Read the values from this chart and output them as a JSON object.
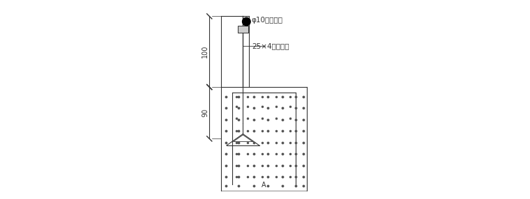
{
  "bg_color": "#ffffff",
  "line_color": "#333333",
  "dot_color": "#555555",
  "text_color": "#333333",
  "label1": "φ10镀锌圆锂",
  "label2": "25×4镀锌扁锂",
  "label_A": "A",
  "dim_100": "100",
  "dim_90": "90",
  "fig_width": 7.6,
  "fig_height": 2.86
}
